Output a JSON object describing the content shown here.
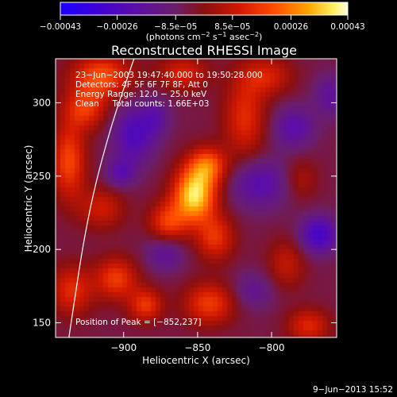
{
  "chart_data": {
    "type": "heatmap",
    "title": "Reconstructed RHESSI Image",
    "xlabel": "Heliocentric X (arcsec)",
    "ylabel": "Heliocentric Y (arcsec)",
    "xlim": [
      -946,
      -756
    ],
    "ylim": [
      140,
      330
    ],
    "x_ticks": [
      -900,
      -850,
      -800
    ],
    "x_tick_labels": [
      "−900",
      "−850",
      "−800"
    ],
    "y_ticks": [
      150,
      200,
      250,
      300
    ],
    "y_tick_labels": [
      "150",
      "200",
      "250",
      "300"
    ],
    "colorbar": {
      "min": -0.00043,
      "max": 0.00043,
      "ticks": [
        -0.00043,
        -0.00026,
        -8.5e-05,
        8.5e-05,
        0.00026,
        0.00043
      ],
      "tick_labels": [
        "−0.00043",
        "−0.00026",
        "−8.5e−05",
        "8.5e−05",
        "0.00026",
        "0.00043"
      ],
      "units_main": "(photons cm",
      "units_exp1": "−2",
      "units_mid": " s",
      "units_exp2": "−1",
      "units_end": " asec",
      "units_exp3": "−2",
      "units_close": ")"
    },
    "annotations": [
      "23−Jun−2003 19:47:40.000 to 19:50:28.000",
      "Detectors: 4F 5F 6F 7F 8F, Att 0",
      "Energy Range: 12.0 − 25.0 keV",
      "Clean     Total counts: 1.66E+03"
    ],
    "peak_label": "Position of Peak = [−852,237]",
    "peak": {
      "x": -852,
      "y": 237
    },
    "limb_curve": [
      [
        -937,
        140
      ],
      [
        -925,
        220
      ],
      [
        -910,
        280
      ],
      [
        -893,
        330
      ]
    ],
    "blobs": [
      {
        "x": -852,
        "y": 237,
        "sx": 10,
        "sy": 13,
        "a": 0.00043
      },
      {
        "x": -843,
        "y": 257,
        "sx": 9,
        "sy": 9,
        "a": 0.00026
      },
      {
        "x": -870,
        "y": 218,
        "sx": 9,
        "sy": 10,
        "a": 0.00022
      },
      {
        "x": -838,
        "y": 208,
        "sx": 9,
        "sy": 11,
        "a": 0.0002
      },
      {
        "x": -915,
        "y": 318,
        "sx": 14,
        "sy": 10,
        "a": 0.00026
      },
      {
        "x": -926,
        "y": 296,
        "sx": 10,
        "sy": 10,
        "a": 0.00021
      },
      {
        "x": -860,
        "y": 320,
        "sx": 12,
        "sy": 8,
        "a": 0.00017
      },
      {
        "x": -818,
        "y": 290,
        "sx": 10,
        "sy": 20,
        "a": 0.00019
      },
      {
        "x": -803,
        "y": 318,
        "sx": 12,
        "sy": 9,
        "a": 0.00016
      },
      {
        "x": -937,
        "y": 260,
        "sx": 8,
        "sy": 18,
        "a": 0.00024
      },
      {
        "x": -915,
        "y": 228,
        "sx": 11,
        "sy": 10,
        "a": 0.00015
      },
      {
        "x": -905,
        "y": 180,
        "sx": 10,
        "sy": 10,
        "a": 0.00022
      },
      {
        "x": -935,
        "y": 172,
        "sx": 10,
        "sy": 12,
        "a": 0.00019
      },
      {
        "x": -885,
        "y": 162,
        "sx": 8,
        "sy": 8,
        "a": 0.00021
      },
      {
        "x": -842,
        "y": 163,
        "sx": 12,
        "sy": 10,
        "a": 0.00022
      },
      {
        "x": -790,
        "y": 190,
        "sx": 9,
        "sy": 12,
        "a": 0.00013
      },
      {
        "x": -775,
        "y": 148,
        "sx": 10,
        "sy": 8,
        "a": 0.00018
      },
      {
        "x": -780,
        "y": 248,
        "sx": 8,
        "sy": 10,
        "a": 0.0001
      },
      {
        "x": -893,
        "y": 278,
        "sx": 10,
        "sy": 14,
        "a": -0.0002
      },
      {
        "x": -902,
        "y": 252,
        "sx": 7,
        "sy": 7,
        "a": -0.00015
      },
      {
        "x": -872,
        "y": 198,
        "sx": 9,
        "sy": 9,
        "a": -0.00014
      },
      {
        "x": -808,
        "y": 245,
        "sx": 14,
        "sy": 12,
        "a": -0.00017
      },
      {
        "x": -768,
        "y": 210,
        "sx": 9,
        "sy": 9,
        "a": -0.00024
      },
      {
        "x": -785,
        "y": 283,
        "sx": 10,
        "sy": 10,
        "a": -0.00016
      },
      {
        "x": -878,
        "y": 290,
        "sx": 7,
        "sy": 9,
        "a": -0.00012
      },
      {
        "x": -760,
        "y": 305,
        "sx": 8,
        "sy": 10,
        "a": -0.00013
      },
      {
        "x": -812,
        "y": 172,
        "sx": 10,
        "sy": 9,
        "a": -0.00011
      }
    ]
  },
  "footer": {
    "timestamp": "9−Jun−2013 15:52"
  },
  "colors": {
    "background": "#000000",
    "foreground": "#ffffff",
    "limb": "#ffffff"
  }
}
